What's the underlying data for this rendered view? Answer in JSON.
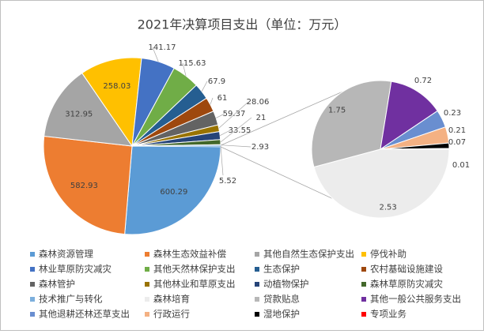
{
  "chart_data": {
    "type": "pie-of-pie",
    "title": "2021年决算项目支出（单位：万元）",
    "slices": [
      {
        "name": "森林资源管理",
        "color": "#5b9bd5",
        "value": 600.29
      },
      {
        "name": "森林生态效益补偿",
        "color": "#ed7d31",
        "value": 582.93
      },
      {
        "name": "其他自然生态保护支出",
        "color": "#a5a5a5",
        "value": 312.95
      },
      {
        "name": "停伐补助",
        "color": "#ffc000",
        "value": 258.03
      },
      {
        "name": "林业草原防灾减灾",
        "color": "#4472c4",
        "value": 141.17
      },
      {
        "name": "其他天然林保护支出",
        "color": "#70ad47",
        "value": 115.63
      },
      {
        "name": "生态保护",
        "color": "#255e91",
        "value": 67.9
      },
      {
        "name": "农村基础设施建设",
        "color": "#9e480e",
        "value": 61
      },
      {
        "name": "森林管护",
        "color": "#636363",
        "value": 59.37
      },
      {
        "name": "其他林业和草原支出",
        "color": "#997300",
        "value": 28.06
      },
      {
        "name": "动植物保护",
        "color": "#264478",
        "value": 33.55
      },
      {
        "name": "森林草原防灾减灾",
        "color": "#43682b",
        "value": 21
      },
      {
        "name": "技术推广与转化",
        "color": "#7cafdd",
        "value": 2.93
      }
    ],
    "other_value": 5.52,
    "secondary": [
      {
        "name": "森林培育",
        "color": "#ececec",
        "value": 2.53
      },
      {
        "name": "贷款贴息",
        "color": "#b7b7b7",
        "value": 1.75
      },
      {
        "name": "其他一般公共服务支出",
        "color": "#7030a0",
        "value": 0.72
      },
      {
        "name": "其他退耕还林还草支出",
        "color": "#698ed0",
        "value": 0.23
      },
      {
        "name": "行政运行",
        "color": "#f4b183",
        "value": 0.21
      },
      {
        "name": "湿地保护",
        "color": "#000000",
        "value": 0.07
      },
      {
        "name": "专项业务",
        "color": "#ff0000",
        "value": 0.01
      }
    ]
  }
}
